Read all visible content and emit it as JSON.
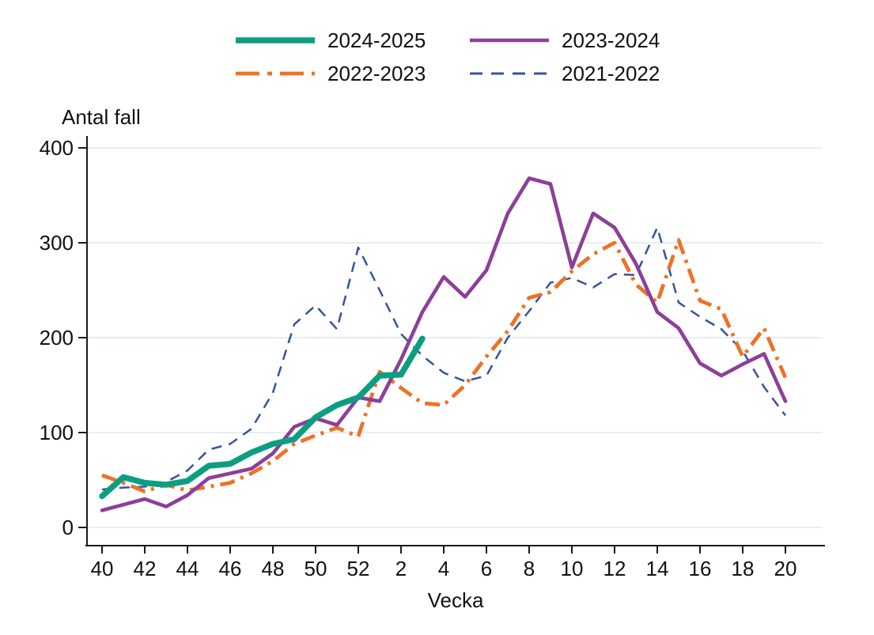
{
  "page": {
    "background": "#ffffff"
  },
  "chart_data": {
    "type": "line",
    "title": "",
    "ylabel": "Antal fall",
    "xlabel": "Vecka",
    "ylim": [
      0,
      400
    ],
    "yticks": [
      0,
      100,
      200,
      300,
      400
    ],
    "grid": "horizontal",
    "gridline_color": "#e6eef2",
    "axis_color": "#1a1a1a",
    "legend_position": "top",
    "categories": [
      "40",
      "41",
      "42",
      "43",
      "44",
      "45",
      "46",
      "47",
      "48",
      "49",
      "50",
      "51",
      "52",
      "1",
      "2",
      "3",
      "4",
      "5",
      "6",
      "7",
      "8",
      "9",
      "10",
      "11",
      "12",
      "13",
      "14",
      "15",
      "16",
      "17",
      "18",
      "19",
      "20"
    ],
    "x_tick_label_indices": [
      0,
      2,
      4,
      6,
      8,
      10,
      12,
      14,
      16,
      18,
      20,
      22,
      24,
      26,
      28,
      30,
      32
    ],
    "series": [
      {
        "name": "2024-2025",
        "color": "#0d9e82",
        "style": "solid",
        "width": 7.5,
        "values": [
          33,
          53,
          47,
          45,
          49,
          65,
          67,
          79,
          88,
          93,
          116,
          129,
          137,
          160,
          161,
          199,
          null,
          null,
          null,
          null,
          null,
          null,
          null,
          null,
          null,
          null,
          null,
          null,
          null,
          null,
          null,
          null,
          null
        ]
      },
      {
        "name": "2023-2024",
        "color": "#8c3f98",
        "style": "solid",
        "width": 4.6,
        "values": [
          18,
          24,
          30,
          22,
          34,
          52,
          57,
          62,
          78,
          106,
          115,
          108,
          137,
          133,
          177,
          227,
          264,
          243,
          271,
          331,
          368,
          362,
          274,
          331,
          316,
          278,
          227,
          210,
          173,
          160,
          172,
          183,
          133
        ]
      },
      {
        "name": "2022-2023",
        "color": "#ed7226",
        "style": "dash-dot",
        "width": 4.8,
        "values": [
          55,
          47,
          38,
          45,
          39,
          43,
          47,
          57,
          70,
          88,
          97,
          105,
          96,
          164,
          147,
          131,
          129,
          150,
          180,
          207,
          242,
          248,
          270,
          288,
          300,
          256,
          237,
          303,
          239,
          230,
          180,
          210,
          158
        ]
      },
      {
        "name": "2021-2022",
        "color": "#33549c",
        "style": "dashed",
        "width": 2.5,
        "values": [
          40,
          42,
          43,
          48,
          60,
          82,
          88,
          104,
          142,
          214,
          234,
          209,
          295,
          250,
          204,
          181,
          163,
          154,
          160,
          200,
          228,
          258,
          263,
          253,
          267,
          266,
          316,
          237,
          222,
          209,
          186,
          148,
          118
        ]
      }
    ]
  }
}
